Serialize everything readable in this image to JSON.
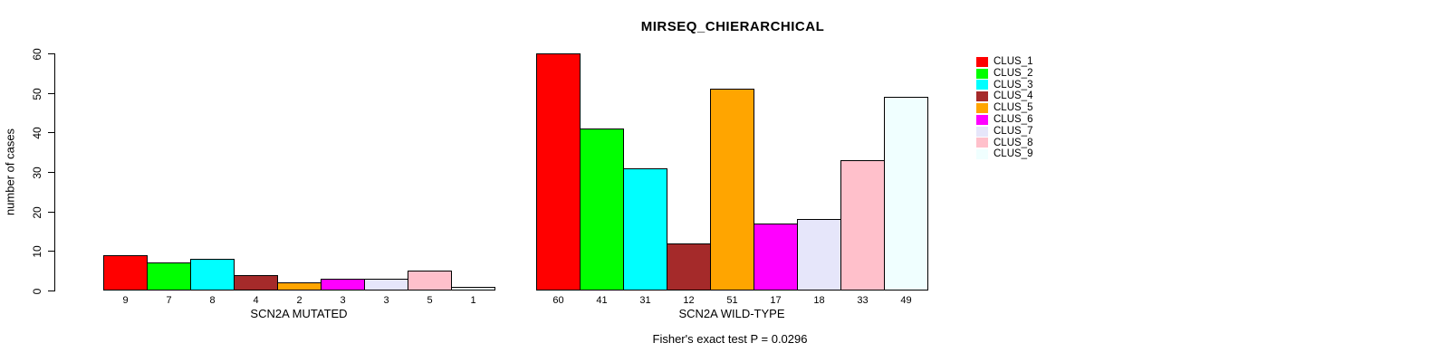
{
  "chart_data": {
    "type": "bar",
    "title": "MIRSEQ_CHIERARCHICAL",
    "ylabel": "number of cases",
    "ylim": [
      0,
      60
    ],
    "yticks": [
      0,
      10,
      20,
      30,
      40,
      50,
      60
    ],
    "grid": false,
    "legend_position": "right",
    "annotation": "Fisher's exact test P = 0.0296",
    "groups": [
      {
        "label": "SCN2A MUTATED",
        "values": [
          9,
          7,
          8,
          4,
          2,
          3,
          3,
          5,
          1
        ]
      },
      {
        "label": "SCN2A WILD-TYPE",
        "values": [
          60,
          41,
          31,
          12,
          51,
          17,
          18,
          33,
          49
        ]
      }
    ],
    "series": [
      {
        "name": "CLUS_1",
        "color": "#FF0000"
      },
      {
        "name": "CLUS_2",
        "color": "#00FF00"
      },
      {
        "name": "CLUS_3",
        "color": "#00FFFF"
      },
      {
        "name": "CLUS_4",
        "color": "#A52A2A"
      },
      {
        "name": "CLUS_5",
        "color": "#FFA500"
      },
      {
        "name": "CLUS_6",
        "color": "#FF00FF"
      },
      {
        "name": "CLUS_7",
        "color": "#E6E6FA"
      },
      {
        "name": "CLUS_8",
        "color": "#FFC0CB"
      },
      {
        "name": "CLUS_9",
        "color": "#F0FFFF"
      }
    ],
    "axis_color": "#000000"
  }
}
